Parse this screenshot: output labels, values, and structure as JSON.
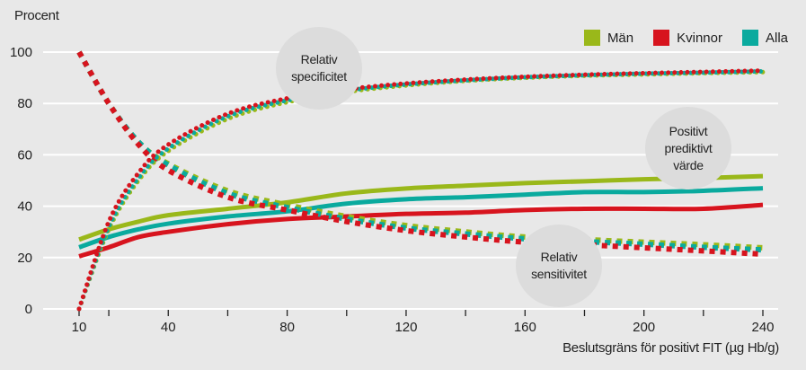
{
  "chart_data": {
    "type": "line",
    "title": "",
    "ylabel": "Procent",
    "xlabel": "Beslutsgräns för positivt FIT (µg Hb/g)",
    "xlim": [
      10,
      240
    ],
    "ylim": [
      0,
      100
    ],
    "x_ticks": [
      20,
      40,
      60,
      80,
      100,
      120,
      140,
      160,
      180,
      200,
      220,
      240
    ],
    "x_tick_labels": [
      "10",
      "40",
      "80",
      "120",
      "160",
      "200",
      "240"
    ],
    "x_tick_label_values": [
      10,
      40,
      80,
      120,
      160,
      200,
      240
    ],
    "y_ticks": [
      0,
      20,
      40,
      60,
      80,
      100
    ],
    "y_tick_labels": [
      "0",
      "20",
      "40",
      "60",
      "80",
      "100"
    ],
    "grid": "horizontal",
    "legend_position": "top-right",
    "legend": [
      {
        "name": "Män",
        "color": "#9ab81a"
      },
      {
        "name": "Kvinnor",
        "color": "#d7141e"
      },
      {
        "name": "Alla",
        "color": "#0aaa9e"
      }
    ],
    "annotations": [
      {
        "text": [
          "Relativ",
          "specificitet"
        ]
      },
      {
        "text": [
          "Positivt",
          "prediktivt",
          "värde"
        ]
      },
      {
        "text": [
          "Relativ",
          "sensitivitet"
        ]
      }
    ],
    "x": [
      10,
      20,
      30,
      40,
      60,
      80,
      100,
      120,
      140,
      160,
      180,
      200,
      220,
      240
    ],
    "series": [
      {
        "group": "Relativ specificitet",
        "name": "Män",
        "style": "dotted",
        "color": "#9ab81a",
        "values": [
          0,
          31,
          50,
          61.5,
          74,
          80.5,
          84.5,
          87,
          88.8,
          90,
          90.8,
          91.3,
          91.8,
          92.2
        ]
      },
      {
        "group": "Relativ specificitet",
        "name": "Alla",
        "style": "dotted",
        "color": "#0aaa9e",
        "values": [
          0,
          32,
          51,
          62.5,
          75,
          81.2,
          85,
          87.4,
          89,
          90.2,
          91,
          91.6,
          92,
          92.5
        ]
      },
      {
        "group": "Relativ specificitet",
        "name": "Kvinnor",
        "style": "dotted",
        "color": "#d7141e",
        "values": [
          0,
          34,
          53,
          64,
          76,
          82,
          85.5,
          87.8,
          89.3,
          90.4,
          91.2,
          91.8,
          92.3,
          92.8
        ]
      },
      {
        "group": "Relativ sensitivitet",
        "name": "Män",
        "style": "dashed",
        "color": "#9ab81a",
        "values": [
          100,
          80,
          65,
          56.5,
          46,
          40.5,
          36,
          32.5,
          30,
          28,
          27,
          26,
          25,
          23.8
        ]
      },
      {
        "group": "Relativ sensitivitet",
        "name": "Alla",
        "style": "dashed",
        "color": "#0aaa9e",
        "values": [
          100,
          80,
          65,
          56,
          45,
          39.5,
          35,
          31.5,
          29.2,
          27.3,
          26.2,
          25.2,
          24,
          23
        ]
      },
      {
        "group": "Relativ sensitivitet",
        "name": "Kvinnor",
        "style": "dashed",
        "color": "#d7141e",
        "values": [
          100,
          80,
          64,
          54,
          43.5,
          38.5,
          34,
          30.5,
          28,
          26,
          25,
          23.8,
          22.6,
          21.3
        ]
      },
      {
        "group": "Positivt prediktivt värde",
        "name": "Män",
        "style": "solid",
        "color": "#9ab81a",
        "values": [
          27,
          31,
          34,
          36.5,
          39,
          41.5,
          45,
          46.9,
          48,
          49,
          49.7,
          50.5,
          51,
          51.7
        ]
      },
      {
        "group": "Positivt prediktivt värde",
        "name": "Alla",
        "style": "solid",
        "color": "#0aaa9e",
        "values": [
          24,
          28,
          31,
          33.2,
          36,
          38,
          41,
          42.7,
          43.5,
          44.5,
          45.5,
          45.5,
          46,
          47
        ]
      },
      {
        "group": "Positivt prediktivt värde",
        "name": "Kvinnor",
        "style": "solid",
        "color": "#d7141e",
        "values": [
          20.5,
          24,
          28,
          30,
          33,
          35,
          36,
          37,
          37.5,
          38.5,
          39,
          39,
          39,
          40.5
        ]
      }
    ]
  }
}
